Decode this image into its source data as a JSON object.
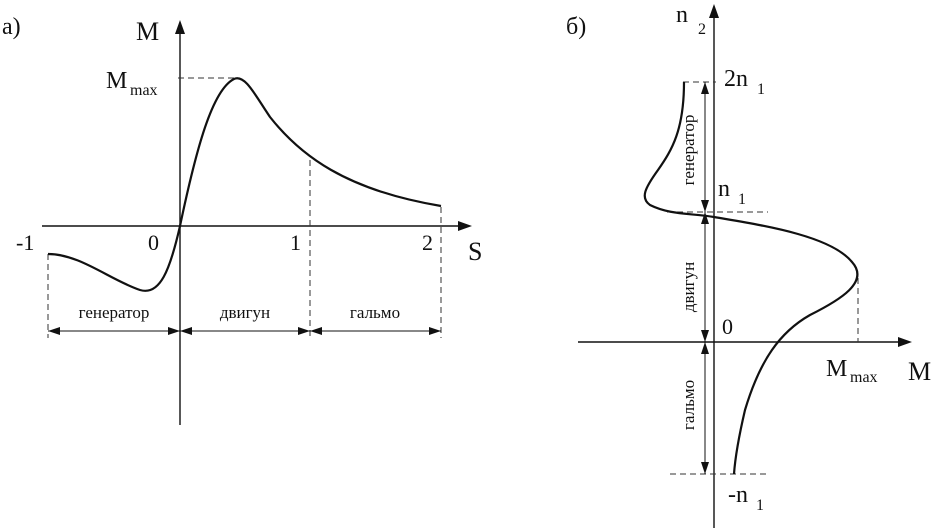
{
  "panel_a": {
    "label": "а)",
    "y_axis": "M",
    "x_axis": "S",
    "ticks": [
      "-1",
      "0",
      "1",
      "2"
    ],
    "mmax_main": "M",
    "mmax_sub": "max",
    "regions": [
      "генератор",
      "двигун",
      "гальмо"
    ]
  },
  "panel_b": {
    "label": "б)",
    "y_axis_main": "n",
    "y_axis_sub": "2",
    "x_axis": "M",
    "origin": "0",
    "tick_2n1_main": "2n",
    "tick_2n1_sub": "1",
    "tick_n1_main": "n",
    "tick_n1_sub": "1",
    "tick_neg_n1_main": "-n",
    "tick_neg_n1_sub": "1",
    "mmax_main": "M",
    "mmax_sub": "max",
    "regions": [
      "генератор",
      "двигун",
      "гальмо"
    ]
  }
}
